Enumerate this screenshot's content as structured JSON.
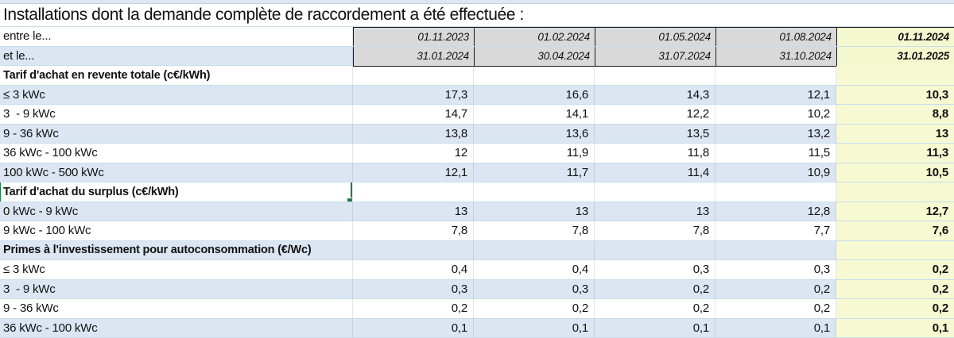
{
  "title": "Installations dont la demande complète de raccordement a été effectuée :",
  "colors": {
    "stripe_blue": "#dbe6f2",
    "row_separator": "#c9dcec",
    "header_gray": "#d9d9d9",
    "highlight_yellow": "#f6f9d2",
    "selection_green": "#27794a"
  },
  "table": {
    "period_rows": [
      {
        "label": "entre le...",
        "dates": [
          "01.11.2023",
          "01.02.2024",
          "01.05.2024",
          "01.08.2024",
          "01.11.2024"
        ]
      },
      {
        "label": "et le...",
        "dates": [
          "31.01.2024",
          "30.04.2024",
          "31.07.2024",
          "31.10.2024",
          "31.01.2025"
        ]
      }
    ],
    "sections": [
      {
        "header": "Tarif d'achat en revente totale (c€/kWh)",
        "selected": false,
        "rows": [
          {
            "label": "≤ 3 kWc",
            "values": [
              "17,3",
              "16,6",
              "14,3",
              "12,1",
              "10,3"
            ]
          },
          {
            "label": "3  - 9 kWc",
            "values": [
              "14,7",
              "14,1",
              "12,2",
              "10,2",
              "8,8"
            ]
          },
          {
            "label": "9 - 36 kWc",
            "values": [
              "13,8",
              "13,6",
              "13,5",
              "13,2",
              "13"
            ]
          },
          {
            "label": "36 kWc - 100 kWc",
            "values": [
              "12",
              "11,9",
              "11,8",
              "11,5",
              "11,3"
            ]
          },
          {
            "label": "100 kWc - 500 kWc",
            "values": [
              "12,1",
              "11,7",
              "11,4",
              "10,9",
              "10,5"
            ]
          }
        ]
      },
      {
        "header": "Tarif d'achat du surplus (c€/kWh)",
        "selected": true,
        "rows": [
          {
            "label": "0 kWc - 9 kWc",
            "values": [
              "13",
              "13",
              "13",
              "12,8",
              "12,7"
            ]
          },
          {
            "label": "9 kWc - 100 kWc",
            "values": [
              "7,8",
              "7,8",
              "7,8",
              "7,7",
              "7,6"
            ]
          }
        ]
      },
      {
        "header": "Primes à l'investissement pour autoconsommation (€/Wc)",
        "selected": false,
        "rows": [
          {
            "label": "≤ 3 kWc",
            "values": [
              "0,4",
              "0,4",
              "0,3",
              "0,3",
              "0,2"
            ]
          },
          {
            "label": "3  - 9 kWc",
            "values": [
              "0,3",
              "0,3",
              "0,2",
              "0,2",
              "0,2"
            ]
          },
          {
            "label": "9 - 36 kWc",
            "values": [
              "0,2",
              "0,2",
              "0,2",
              "0,2",
              "0,2"
            ]
          },
          {
            "label": "36 kWc - 100 kWc",
            "values": [
              "0,1",
              "0,1",
              "0,1",
              "0,1",
              "0,1"
            ]
          }
        ]
      }
    ]
  }
}
